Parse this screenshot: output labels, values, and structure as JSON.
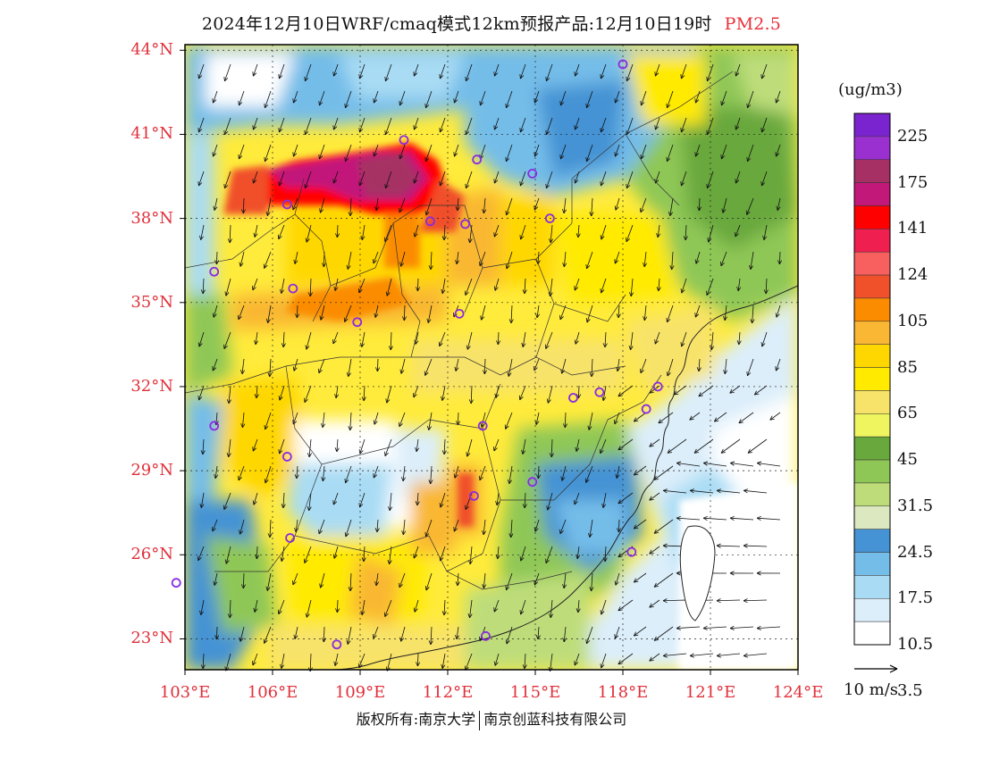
{
  "title": {
    "main": "2024年12月10日WRF/cmaq模式12km预报产品:12月10日19时",
    "pollutant": "PM2.5"
  },
  "map": {
    "lat_labels": [
      "44°N",
      "41°N",
      "38°N",
      "35°N",
      "32°N",
      "29°N",
      "26°N",
      "23°N"
    ],
    "lon_labels": [
      "103°E",
      "106°E",
      "109°E",
      "112°E",
      "115°E",
      "118°E",
      "121°E",
      "124°E"
    ],
    "lat_values": [
      44,
      41,
      38,
      35,
      32,
      29,
      26,
      23
    ],
    "lon_values": [
      103,
      106,
      109,
      112,
      115,
      118,
      121,
      124
    ],
    "extent": {
      "lon_min": 103,
      "lon_max": 124,
      "lat_min": 21.9,
      "lat_max": 44.2
    },
    "city_markers": [
      [
        118.0,
        43.5
      ],
      [
        113.0,
        40.1
      ],
      [
        114.9,
        39.6
      ],
      [
        106.5,
        38.5
      ],
      [
        110.5,
        40.8
      ],
      [
        111.4,
        37.9
      ],
      [
        112.6,
        37.8
      ],
      [
        115.5,
        38.0
      ],
      [
        104.0,
        36.1
      ],
      [
        106.7,
        35.5
      ],
      [
        108.9,
        34.3
      ],
      [
        112.4,
        34.6
      ],
      [
        116.3,
        31.6
      ],
      [
        117.2,
        31.8
      ],
      [
        119.2,
        32.0
      ],
      [
        118.8,
        31.2
      ],
      [
        113.2,
        30.6
      ],
      [
        104.0,
        30.6
      ],
      [
        106.5,
        29.5
      ],
      [
        114.9,
        28.6
      ],
      [
        112.9,
        28.1
      ],
      [
        106.6,
        26.6
      ],
      [
        118.3,
        26.1
      ],
      [
        102.7,
        25.0
      ],
      [
        108.2,
        22.8
      ],
      [
        113.3,
        23.1
      ]
    ]
  },
  "colorbar": {
    "unit": "(ug/m3)",
    "bands": [
      {
        "color": "#ffffff"
      },
      {
        "color": "#dceefa"
      },
      {
        "color": "#a9dcf4"
      },
      {
        "color": "#74bde9"
      },
      {
        "color": "#4593d4"
      },
      {
        "color": "#dbe8c0"
      },
      {
        "color": "#bedd7a"
      },
      {
        "color": "#8fc756"
      },
      {
        "color": "#69a83c"
      },
      {
        "color": "#eef55e"
      },
      {
        "color": "#f8e36a"
      },
      {
        "color": "#ffea00"
      },
      {
        "color": "#ffd700"
      },
      {
        "color": "#f9b733"
      },
      {
        "color": "#fb8c00"
      },
      {
        "color": "#f0502a"
      },
      {
        "color": "#f86060"
      },
      {
        "color": "#ef1f50"
      },
      {
        "color": "#ff0000"
      },
      {
        "color": "#c2187a"
      },
      {
        "color": "#a63064"
      },
      {
        "color": "#9b30d0"
      },
      {
        "color": "#7a24d0"
      }
    ],
    "labels": [
      "3.5",
      "10.5",
      "17.5",
      "24.5",
      "31.5",
      "45",
      "65",
      "85",
      "105",
      "124",
      "141",
      "175",
      "225"
    ]
  },
  "wind_vector": {
    "label": "10 m/s"
  },
  "copyright": {
    "left": "版权所有:南京大学",
    "right": "南京创蓝科技有限公司"
  }
}
